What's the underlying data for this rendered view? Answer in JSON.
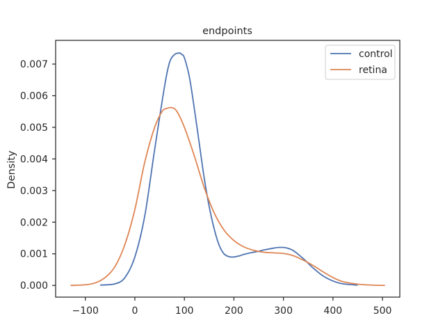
{
  "chart_data": {
    "type": "line",
    "title": "endpoints",
    "xlabel": "",
    "ylabel": "Density",
    "xlim": [
      -160,
      535
    ],
    "ylim": [
      -0.00037,
      0.00775
    ],
    "xticks": [
      -100,
      0,
      100,
      200,
      300,
      400,
      500
    ],
    "xtick_labels": [
      "−100",
      "0",
      "100",
      "200",
      "300",
      "400",
      "500"
    ],
    "yticks": [
      0.0,
      0.001,
      0.002,
      0.003,
      0.004,
      0.005,
      0.006,
      0.007
    ],
    "ytick_labels": [
      "0.000",
      "0.001",
      "0.002",
      "0.003",
      "0.004",
      "0.005",
      "0.006",
      "0.007"
    ],
    "grid": false,
    "legend_position": "top-right",
    "series": [
      {
        "name": "control",
        "color": "#4c72b0",
        "x": [
          -70,
          -40,
          -20,
          0,
          20,
          40,
          60,
          70,
          80,
          90,
          95,
          100,
          110,
          120,
          130,
          140,
          150,
          160,
          170,
          180,
          190,
          200,
          210,
          220,
          230,
          240,
          250,
          260,
          270,
          280,
          290,
          300,
          310,
          320,
          330,
          340,
          350,
          360,
          380,
          400,
          420,
          450
        ],
        "y": [
          1e-05,
          5e-05,
          0.00025,
          0.0009,
          0.0022,
          0.0043,
          0.0063,
          0.00705,
          0.0073,
          0.00735,
          0.0073,
          0.0072,
          0.0066,
          0.0056,
          0.0045,
          0.0034,
          0.0025,
          0.0018,
          0.00128,
          0.001,
          0.00091,
          0.0009,
          0.00093,
          0.00098,
          0.00102,
          0.00105,
          0.00108,
          0.00112,
          0.00115,
          0.00118,
          0.0012,
          0.0012,
          0.00117,
          0.0011,
          0.00098,
          0.00085,
          0.0007,
          0.00055,
          0.0003,
          0.00014,
          5e-05,
          1e-05
        ]
      },
      {
        "name": "retina",
        "color": "#dd8452",
        "x": [
          -130,
          -100,
          -80,
          -60,
          -40,
          -20,
          0,
          20,
          40,
          55,
          65,
          75,
          85,
          100,
          120,
          140,
          160,
          180,
          200,
          220,
          240,
          260,
          280,
          300,
          320,
          340,
          360,
          380,
          400,
          420,
          450,
          480,
          505
        ],
        "y": [
          0.0,
          2e-05,
          8e-05,
          0.00025,
          0.0006,
          0.0013,
          0.0024,
          0.0039,
          0.005,
          0.0055,
          0.0056,
          0.00562,
          0.0055,
          0.005,
          0.0041,
          0.0031,
          0.0023,
          0.00175,
          0.00142,
          0.00122,
          0.00111,
          0.00105,
          0.00103,
          0.00101,
          0.00094,
          0.0008,
          0.00063,
          0.00043,
          0.00025,
          0.00012,
          4e-05,
          1e-05,
          0.0
        ]
      }
    ]
  }
}
